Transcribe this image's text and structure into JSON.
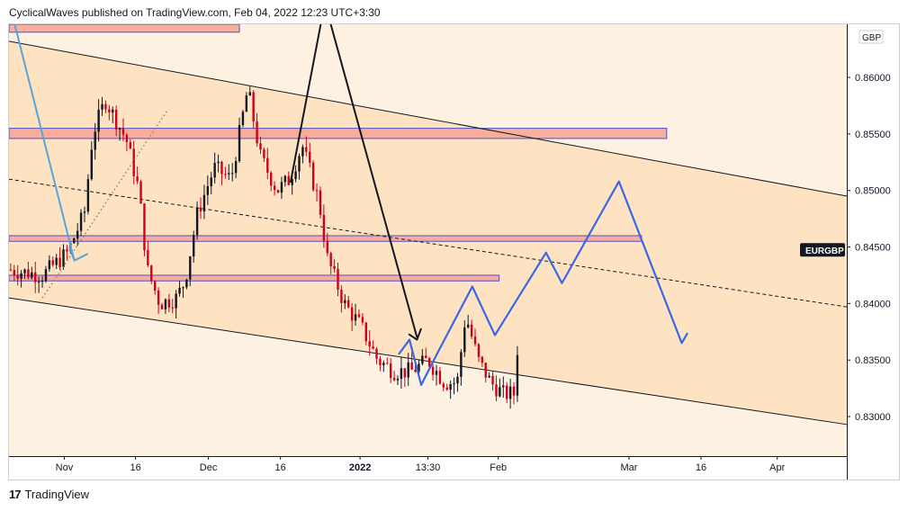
{
  "header": {
    "publisher": "CyclicalWaves",
    "published_text": "published on TradingView.com, Feb 04, 2022 12:23 UTC+3:30"
  },
  "footer": {
    "logo": "17",
    "brand": "TradingView"
  },
  "chart_data": {
    "type": "candlestick",
    "symbol": "EURGBP",
    "currency": "GBP",
    "ylim": [
      0.8265,
      0.8647
    ],
    "y_ticks": [
      "0.83000",
      "0.83500",
      "0.84000",
      "0.84500",
      "0.85000",
      "0.85500",
      "0.86000"
    ],
    "x_ticks": [
      {
        "label": "Nov",
        "bold": false
      },
      {
        "label": "16",
        "bold": false
      },
      {
        "label": "Dec",
        "bold": false
      },
      {
        "label": "16",
        "bold": false
      },
      {
        "label": "2022",
        "bold": true
      },
      {
        "label": "13:30",
        "bold": false
      },
      {
        "label": "Feb",
        "bold": false
      },
      {
        "label": "Mar",
        "bold": false
      },
      {
        "label": "16",
        "bold": false
      },
      {
        "label": "Apr",
        "bold": false
      }
    ],
    "last_price_label": "EURGBP",
    "colors": {
      "channel_fill": "#fde3c2",
      "background": "#fdf1e2",
      "zone_fill": "#f7a89a",
      "zone_border": "#3f3fbf",
      "up_candle": "#131722",
      "down_candle": "#d0021b",
      "projection": "#3a66e8",
      "arrow": "#131722",
      "teal_line": "#5aa3d8",
      "dotted_line": "#a08060"
    },
    "channel": {
      "upper": [
        [
          0,
          0.8632
        ],
        [
          1,
          0.8495
        ]
      ],
      "lower": [
        [
          0,
          0.8405
        ],
        [
          1,
          0.8293
        ]
      ],
      "mid": [
        [
          0,
          0.851
        ],
        [
          1,
          0.8397
        ]
      ]
    },
    "zones": [
      {
        "x0": 0.0,
        "x1": 0.275,
        "top": 0.8647,
        "bottom": 0.864
      },
      {
        "x0": 0.0,
        "x1": 0.785,
        "top": 0.8555,
        "bottom": 0.8546
      },
      {
        "x0": 0.0,
        "x1": 0.755,
        "top": 0.846,
        "bottom": 0.8455
      },
      {
        "x0": 0.0,
        "x1": 0.585,
        "top": 0.8425,
        "bottom": 0.842
      }
    ],
    "projection_path": [
      [
        0.465,
        0.8355
      ],
      [
        0.478,
        0.8368
      ],
      [
        0.492,
        0.8328
      ],
      [
        0.512,
        0.8357
      ],
      [
        0.553,
        0.8415
      ],
      [
        0.58,
        0.8372
      ],
      [
        0.641,
        0.8445
      ],
      [
        0.66,
        0.8418
      ],
      [
        0.728,
        0.8508
      ],
      [
        0.803,
        0.8365
      ],
      [
        0.81,
        0.8374
      ]
    ],
    "arrow_path": [
      [
        0.336,
        0.8507
      ],
      [
        0.377,
        0.8666
      ],
      [
        0.487,
        0.837
      ]
    ],
    "arrow_head": [
      [
        0.477,
        0.8373
      ],
      [
        0.487,
        0.8368
      ],
      [
        0.492,
        0.8378
      ]
    ],
    "teal_path": [
      [
        0.0,
        0.8667
      ],
      [
        0.078,
        0.8438
      ]
    ],
    "teal_head": [
      [
        0.072,
        0.845
      ],
      [
        0.078,
        0.8438
      ],
      [
        0.094,
        0.8444
      ]
    ],
    "dotted_path": [
      [
        0.04,
        0.8405
      ],
      [
        0.19,
        0.8572
      ]
    ],
    "candles": []
  }
}
